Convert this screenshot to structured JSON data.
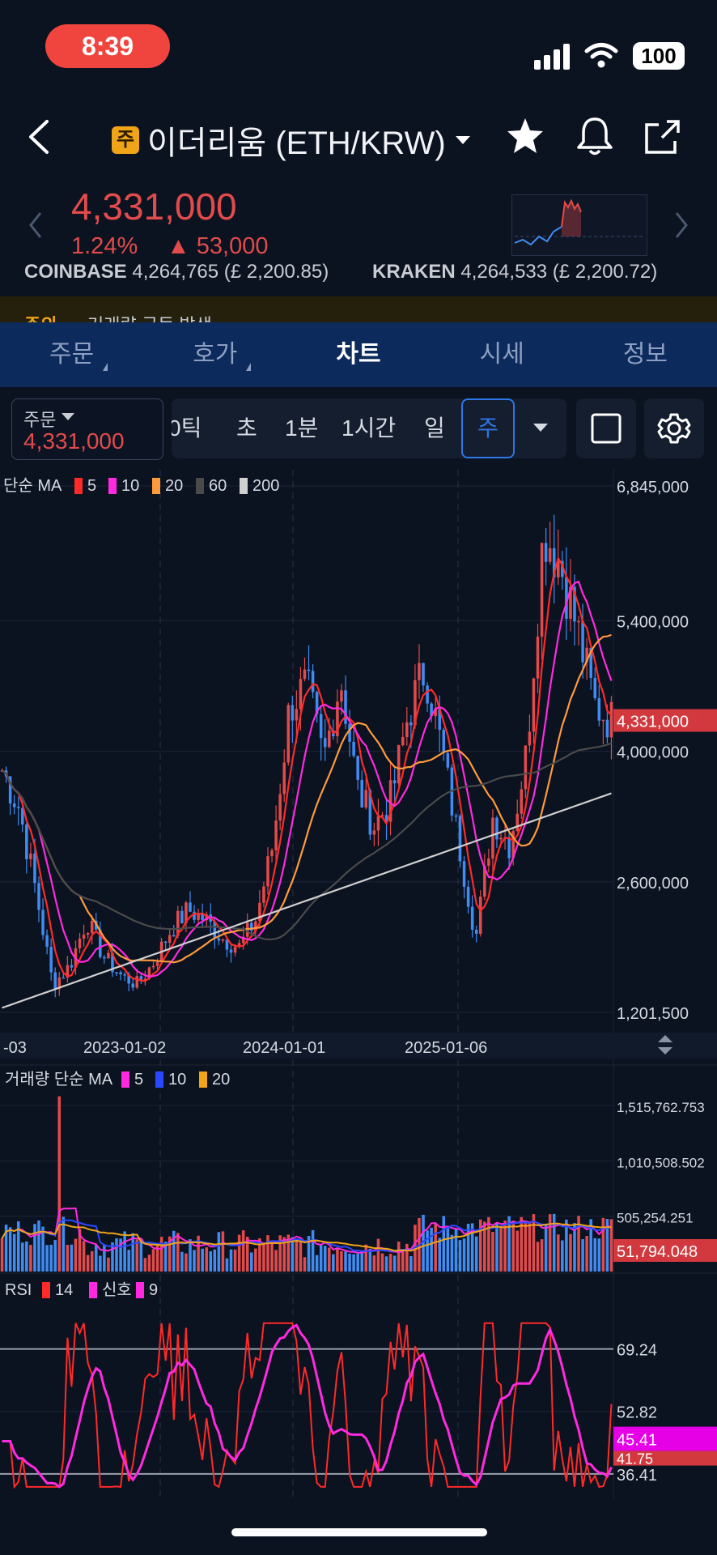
{
  "status": {
    "time": "8:39",
    "battery": "100"
  },
  "header": {
    "badge": "주",
    "title": "이더리움 (ETH/KRW)"
  },
  "ticker": {
    "price": "4,331,000",
    "change_pct": "1.24%",
    "change_abs": "▲ 53,000"
  },
  "exchanges": [
    {
      "name": "COINBASE",
      "value": "4,264,765 (£ 2,200.85)"
    },
    {
      "name": "KRAKEN",
      "value": "4,264,533 (£ 2,200.72)"
    }
  ],
  "notice": {
    "label": "주의",
    "text": "거래량 급등 발생"
  },
  "tabs": [
    "주문",
    "호가",
    "차트",
    "시세",
    "정보"
  ],
  "order_box": {
    "label": "주문",
    "value": "4,331,000"
  },
  "periods": [
    "0틱",
    "초",
    "1분",
    "1시간",
    "일",
    "주"
  ],
  "colors": {
    "up": "#e24b4b",
    "down": "#3f8cf2",
    "accent": "#2d77e6",
    "ma5": "#ff2a2a",
    "ma10": "#ff2adf",
    "ma20": "#ff9a3c",
    "ma60": "#4a4a4a",
    "ma200": "#d0d0d0"
  },
  "chart_data": [
    {
      "type": "candlestick",
      "title": "",
      "legend": {
        "label": "단순 MA",
        "items": [
          {
            "name": "5",
            "color": "#ff2a2a"
          },
          {
            "name": "10",
            "color": "#ff2adf"
          },
          {
            "name": "20",
            "color": "#ff9a3c"
          },
          {
            "name": "60",
            "color": "#4a4a4a"
          },
          {
            "name": "200",
            "color": "#d0d0d0"
          }
        ]
      },
      "y_ticks": [
        "6,845,000",
        "5,400,000",
        "4,000,000",
        "2,600,000",
        "1,201,500"
      ],
      "current_price_label": "4,331,000",
      "x_ticks": [
        "-03",
        "2023-01-02",
        "2024-01-01",
        "2025-01-06"
      ],
      "ylim": [
        1201500,
        6845000
      ],
      "close_path": [
        3800000,
        3400000,
        2500000,
        1500000,
        1700000,
        2200000,
        1800000,
        1600000,
        1500000,
        1750000,
        2100000,
        2300000,
        2200000,
        2000000,
        1900000,
        2200000,
        3000000,
        4500000,
        4700000,
        3900000,
        4800000,
        3600000,
        3200000,
        3500000,
        4400000,
        4900000,
        4000000,
        3000000,
        2000000,
        3300000,
        3000000,
        4000000,
        6400000,
        6000000,
        5300000,
        4500000,
        4331000
      ]
    },
    {
      "type": "bar",
      "title": "",
      "legend": {
        "label": "거래량 단순 MA",
        "items": [
          {
            "name": "5",
            "color": "#ff2adf"
          },
          {
            "name": "10",
            "color": "#2a48ff"
          },
          {
            "name": "20",
            "color": "#f0a417"
          }
        ]
      },
      "y_ticks": [
        "1,515,762.753",
        "1,010,508.502",
        "505,254.251"
      ],
      "current_volume_label": "51,794.048",
      "ylim": [
        0,
        1515762.753
      ]
    },
    {
      "type": "line",
      "title": "",
      "legend": {
        "label": "RSI",
        "items": [
          {
            "name": "14",
            "color": "#ff2a2a"
          },
          {
            "name": "신호",
            "color": "#ff2adf"
          },
          {
            "name": "9",
            "color": "#ff2adf"
          }
        ]
      },
      "y_ticks": [
        "69.24",
        "52.82",
        "36.41"
      ],
      "current_rsi": "41.75",
      "current_signal": "45.41",
      "ylim": [
        30,
        80
      ]
    }
  ]
}
